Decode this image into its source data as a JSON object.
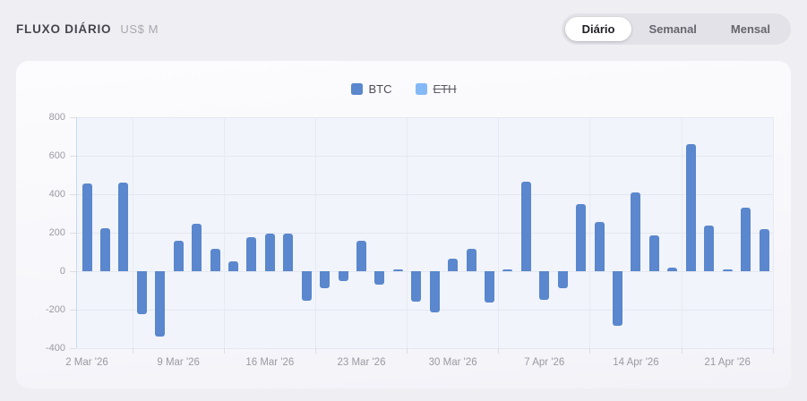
{
  "header": {
    "title": "FLUXO DIÁRIO",
    "unit": "US$ M"
  },
  "tabs": [
    {
      "label": "Diário",
      "active": true
    },
    {
      "label": "Semanal",
      "active": false
    },
    {
      "label": "Mensal",
      "active": false
    }
  ],
  "legend": [
    {
      "label": "BTC",
      "color": "#5a87cd",
      "disabled": false
    },
    {
      "label": "ETH",
      "color": "#85b9f6",
      "disabled": true
    }
  ],
  "colors": {
    "bar": "#5a87cd",
    "eth": "#85b9f6",
    "plot_bg": "#f1f4fa",
    "gridline": "#e4e7ef",
    "axis_line": "#c7d9f1",
    "page_bg": "#efeef3",
    "active_tab_bg": "#ffffff"
  },
  "chart_data": {
    "type": "bar",
    "title": "FLUXO DIÁRIO (US$ M)",
    "series": [
      {
        "name": "BTC",
        "color": "#5a87cd",
        "visible": true,
        "values": [
          455,
          225,
          460,
          -225,
          -340,
          160,
          245,
          115,
          50,
          175,
          195,
          195,
          -155,
          -90,
          -50,
          160,
          -70,
          10,
          -160,
          -215,
          65,
          115,
          -165,
          10,
          465,
          -150,
          -90,
          350,
          255,
          -285,
          410,
          185,
          20,
          660,
          235,
          10,
          330,
          220
        ]
      },
      {
        "name": "ETH",
        "color": "#85b9f6",
        "visible": false,
        "values": []
      }
    ],
    "x_tick_labels": [
      "2 Mar '26",
      "9 Mar '26",
      "16 Mar '26",
      "23 Mar '26",
      "30 Mar '26",
      "7 Apr '26",
      "14 Apr '26",
      "21 Apr '26"
    ],
    "x_tick_every": 5,
    "y_ticks": [
      800,
      600,
      400,
      200,
      0,
      -200,
      -400
    ],
    "ylim": [
      -400,
      800
    ],
    "xlabel": "",
    "ylabel": "",
    "grid": true,
    "legend_position": "top-center"
  }
}
